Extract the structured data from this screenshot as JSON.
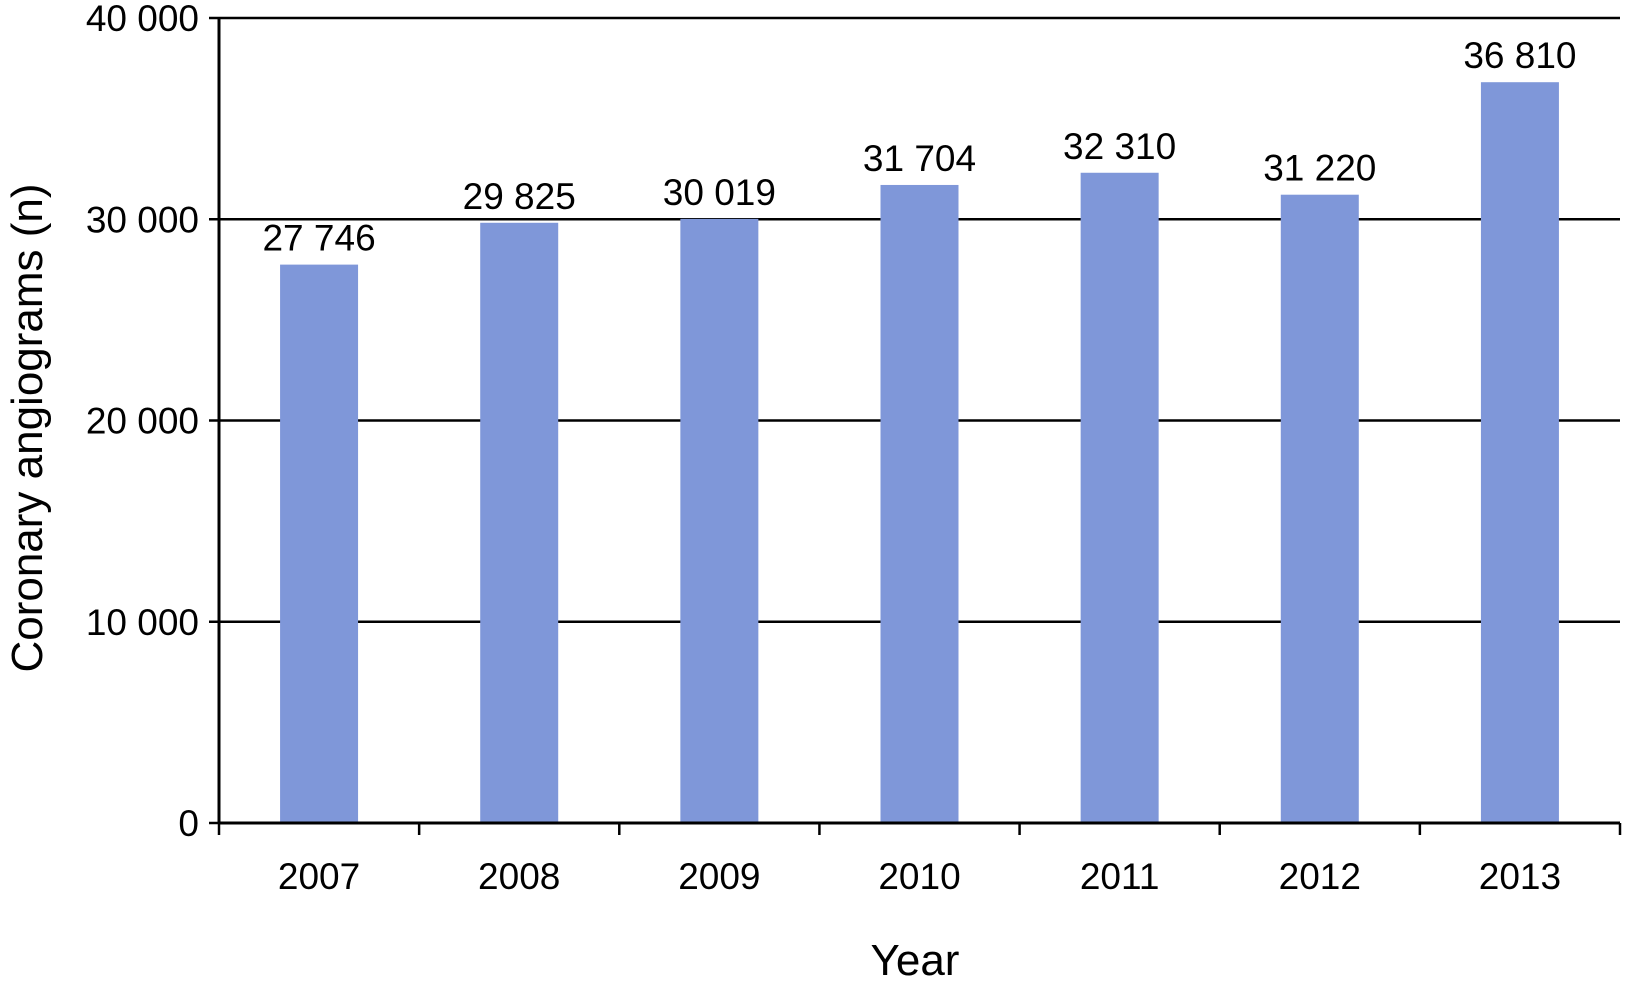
{
  "chart_data": {
    "type": "bar",
    "title": "",
    "xlabel": "Year",
    "ylabel": "Coronary angiograms (n)",
    "categories": [
      "2007",
      "2008",
      "2009",
      "2010",
      "2011",
      "2012",
      "2013"
    ],
    "values": [
      27746,
      29825,
      30019,
      31704,
      32310,
      31220,
      36810
    ],
    "value_labels": [
      "27 746",
      "29 825",
      "30 019",
      "31 704",
      "32 310",
      "31 220",
      "36 810"
    ],
    "ylim": [
      0,
      40000
    ],
    "yticks": [
      0,
      10000,
      20000,
      30000,
      40000
    ],
    "ytick_labels": [
      "0",
      "10 000",
      "20 000",
      "30 000",
      "40 000"
    ],
    "grid": "horizontal",
    "bar_color": "#7f97d9"
  }
}
